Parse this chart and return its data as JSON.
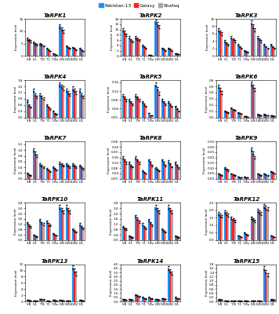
{
  "legend_labels": [
    "Pakistan-13",
    "Galaxy",
    "Shafaq"
  ],
  "legend_colors": [
    "#1E90FF",
    "#FF2020",
    "#A8A8A8"
  ],
  "x_labels": [
    "S.B",
    "S.L",
    "T.B",
    "T.L",
    "T.Bu",
    "D.B",
    "D.B1",
    "D.B2",
    "D.L"
  ],
  "subplots": [
    {
      "name": "TaRPK1",
      "ylim": [
        0,
        15
      ],
      "yticks": [
        0,
        5,
        10,
        15
      ],
      "data": {
        "Pakistan-13": [
          7,
          5.5,
          5,
          3,
          1,
          12,
          4,
          3.5,
          3
        ],
        "Galaxy": [
          6.5,
          5,
          4.5,
          2.5,
          0.8,
          11,
          3.5,
          3,
          2.5
        ],
        "Shafaq": [
          6,
          4.5,
          4,
          2,
          0.5,
          10,
          3,
          2.5,
          2
        ]
      }
    },
    {
      "name": "TaRPK2",
      "ylim": [
        0,
        14
      ],
      "yticks": [
        0,
        2,
        4,
        6,
        8,
        10,
        12,
        14
      ],
      "data": {
        "Pakistan-13": [
          10,
          7,
          7,
          4,
          0.5,
          13,
          3,
          3,
          1
        ],
        "Galaxy": [
          9,
          6,
          6.5,
          3.5,
          0.3,
          12,
          2.5,
          2.5,
          0.8
        ],
        "Shafaq": [
          8,
          5.5,
          6,
          3,
          0.2,
          11,
          2,
          2,
          0.6
        ]
      }
    },
    {
      "name": "TaRPK3",
      "ylim": [
        0,
        10
      ],
      "yticks": [
        0,
        2,
        4,
        6,
        8,
        10
      ],
      "data": {
        "Pakistan-13": [
          7,
          4,
          5,
          3,
          1.5,
          9,
          5,
          3,
          3
        ],
        "Galaxy": [
          6.5,
          3.5,
          4.5,
          2.5,
          1.2,
          8,
          4.5,
          2.5,
          2.5
        ],
        "Shafaq": [
          6,
          3,
          4,
          2,
          1,
          7,
          4,
          2,
          2
        ]
      }
    },
    {
      "name": "TaRPK4",
      "ylim": [
        0,
        1.8
      ],
      "yticks": [
        0,
        0.3,
        0.6,
        0.9,
        1.2,
        1.5,
        1.8
      ],
      "data": {
        "Pakistan-13": [
          0.8,
          1.3,
          1.1,
          0.6,
          0.3,
          1.6,
          1.3,
          1.4,
          1.3
        ],
        "Galaxy": [
          0.6,
          1.1,
          1.0,
          0.5,
          0.2,
          1.5,
          1.2,
          1.3,
          1.1
        ],
        "Shafaq": [
          0.5,
          1.0,
          0.9,
          0.4,
          0.15,
          1.4,
          1.1,
          1.2,
          1.0
        ]
      }
    },
    {
      "name": "TaRPK5",
      "ylim": [
        0,
        0.17
      ],
      "yticks": [
        0,
        0.04,
        0.08,
        0.12,
        0.16
      ],
      "data": {
        "Pakistan-13": [
          0.1,
          0.08,
          0.1,
          0.07,
          0.02,
          0.15,
          0.08,
          0.07,
          0.05
        ],
        "Galaxy": [
          0.09,
          0.07,
          0.09,
          0.06,
          0.01,
          0.13,
          0.07,
          0.06,
          0.04
        ],
        "Shafaq": [
          0.08,
          0.06,
          0.08,
          0.05,
          0.01,
          0.11,
          0.06,
          0.05,
          0.03
        ]
      }
    },
    {
      "name": "TaRPK6",
      "ylim": [
        0,
        0.6
      ],
      "yticks": [
        0,
        0.1,
        0.2,
        0.3,
        0.4,
        0.5,
        0.6
      ],
      "data": {
        "Pakistan-13": [
          0.5,
          0.1,
          0.15,
          0.08,
          0.02,
          0.55,
          0.05,
          0.05,
          0.03
        ],
        "Galaxy": [
          0.45,
          0.09,
          0.13,
          0.07,
          0.015,
          0.5,
          0.04,
          0.04,
          0.025
        ],
        "Shafaq": [
          0.4,
          0.08,
          0.11,
          0.06,
          0.01,
          0.45,
          0.03,
          0.03,
          0.02
        ]
      }
    },
    {
      "name": "TaRPK7",
      "ylim": [
        0,
        1.3
      ],
      "yticks": [
        0,
        0.2,
        0.4,
        0.6,
        0.8,
        1.0,
        1.2
      ],
      "data": {
        "Pakistan-13": [
          0.2,
          1.0,
          0.5,
          0.35,
          0.4,
          0.55,
          0.5,
          0.5,
          0.45
        ],
        "Galaxy": [
          0.15,
          0.9,
          0.45,
          0.3,
          0.35,
          0.5,
          0.45,
          0.45,
          0.4
        ],
        "Shafaq": [
          0.12,
          0.8,
          0.4,
          0.25,
          0.3,
          0.45,
          0.4,
          0.4,
          0.35
        ]
      }
    },
    {
      "name": "TaRPK8",
      "ylim": [
        0,
        0.28
      ],
      "yticks": [
        0,
        0.04,
        0.08,
        0.12,
        0.16,
        0.2,
        0.24,
        0.28
      ],
      "data": {
        "Pakistan-13": [
          0.16,
          0.12,
          0.16,
          0.06,
          0.14,
          0.08,
          0.14,
          0.13,
          0.12
        ],
        "Galaxy": [
          0.14,
          0.1,
          0.14,
          0.05,
          0.12,
          0.07,
          0.12,
          0.11,
          0.1
        ],
        "Shafaq": [
          0.12,
          0.09,
          0.12,
          0.04,
          0.1,
          0.06,
          0.1,
          0.09,
          0.08
        ]
      }
    },
    {
      "name": "TaRPK9",
      "ylim": [
        0,
        0.35
      ],
      "yticks": [
        0,
        0.05,
        0.1,
        0.15,
        0.2,
        0.25,
        0.3,
        0.35
      ],
      "data": {
        "Pakistan-13": [
          0.05,
          0.1,
          0.05,
          0.02,
          0.02,
          0.28,
          0.05,
          0.05,
          0.07
        ],
        "Galaxy": [
          0.04,
          0.09,
          0.04,
          0.015,
          0.015,
          0.24,
          0.04,
          0.04,
          0.06
        ],
        "Shafaq": [
          0.03,
          0.08,
          0.03,
          0.01,
          0.01,
          0.2,
          0.03,
          0.03,
          0.05
        ]
      }
    },
    {
      "name": "TaRPK10",
      "ylim": [
        0,
        2.8
      ],
      "yticks": [
        0,
        0.4,
        0.8,
        1.2,
        1.6,
        2.0,
        2.4,
        2.8
      ],
      "data": {
        "Pakistan-13": [
          1.3,
          0.4,
          1.5,
          1.4,
          0.5,
          2.5,
          2.5,
          0.8,
          1.2
        ],
        "Galaxy": [
          1.1,
          0.3,
          1.3,
          1.2,
          0.4,
          2.3,
          2.3,
          0.7,
          1.0
        ],
        "Shafaq": [
          1.0,
          0.25,
          1.2,
          1.1,
          0.35,
          2.1,
          2.1,
          0.6,
          0.9
        ]
      }
    },
    {
      "name": "TaRPK11",
      "ylim": [
        0,
        2.8
      ],
      "yticks": [
        0,
        0.4,
        0.8,
        1.2,
        1.6,
        2.0,
        2.4,
        2.8
      ],
      "data": {
        "Pakistan-13": [
          1.0,
          0.3,
          1.8,
          1.2,
          1.5,
          2.5,
          0.8,
          2.5,
          0.3
        ],
        "Galaxy": [
          0.9,
          0.25,
          1.6,
          1.0,
          1.3,
          2.3,
          0.7,
          2.3,
          0.25
        ],
        "Shafaq": [
          0.8,
          0.2,
          1.4,
          0.9,
          1.1,
          2.1,
          0.6,
          2.1,
          0.2
        ]
      }
    },
    {
      "name": "TaRPK12",
      "ylim": [
        0,
        2.5
      ],
      "yticks": [
        0,
        0.5,
        1.0,
        1.5,
        2.0,
        2.5
      ],
      "data": {
        "Pakistan-13": [
          1.8,
          1.9,
          1.5,
          0.3,
          0.5,
          1.5,
          2.0,
          2.3,
          0.3
        ],
        "Galaxy": [
          1.7,
          1.8,
          1.4,
          0.25,
          0.4,
          1.4,
          1.9,
          2.2,
          0.25
        ],
        "Shafaq": [
          1.6,
          1.7,
          1.3,
          0.2,
          0.35,
          1.3,
          1.8,
          2.1,
          0.2
        ]
      }
    },
    {
      "name": "TaRPK13",
      "ylim": [
        0,
        12
      ],
      "yticks": [
        0,
        2,
        4,
        6,
        8,
        10,
        12
      ],
      "data": {
        "Pakistan-13": [
          0.5,
          0.3,
          0.8,
          0.2,
          0.5,
          0.5,
          0.3,
          11,
          0.5
        ],
        "Galaxy": [
          0.4,
          0.25,
          0.7,
          0.15,
          0.4,
          0.4,
          0.25,
          10,
          0.4
        ],
        "Shafaq": [
          0.3,
          0.2,
          0.6,
          0.1,
          0.35,
          0.35,
          0.2,
          9,
          0.35
        ]
      }
    },
    {
      "name": "TaRPK14",
      "ylim": [
        0,
        4.5
      ],
      "yticks": [
        0,
        0.5,
        1.0,
        1.5,
        2.0,
        2.5,
        3.0,
        3.5,
        4.0,
        4.5
      ],
      "data": {
        "Pakistan-13": [
          0.3,
          0.3,
          0.8,
          0.5,
          0.5,
          0.3,
          0.4,
          4.0,
          0.5
        ],
        "Galaxy": [
          0.25,
          0.25,
          0.7,
          0.4,
          0.4,
          0.25,
          0.35,
          3.7,
          0.4
        ],
        "Shafaq": [
          0.2,
          0.2,
          0.6,
          0.35,
          0.35,
          0.2,
          0.3,
          3.4,
          0.35
        ]
      }
    },
    {
      "name": "TaRPK15",
      "ylim": [
        0,
        1.8
      ],
      "yticks": [
        0,
        0.2,
        0.4,
        0.6,
        0.8,
        1.0,
        1.2,
        1.4,
        1.6,
        1.8
      ],
      "data": {
        "Pakistan-13": [
          0.1,
          0.03,
          0.05,
          0.03,
          0.03,
          0.05,
          0.03,
          1.6,
          0.1
        ],
        "Galaxy": [
          0.09,
          0.025,
          0.04,
          0.025,
          0.025,
          0.04,
          0.025,
          1.45,
          0.09
        ],
        "Shafaq": [
          0.08,
          0.02,
          0.03,
          0.02,
          0.02,
          0.03,
          0.02,
          1.3,
          0.08
        ]
      }
    }
  ]
}
